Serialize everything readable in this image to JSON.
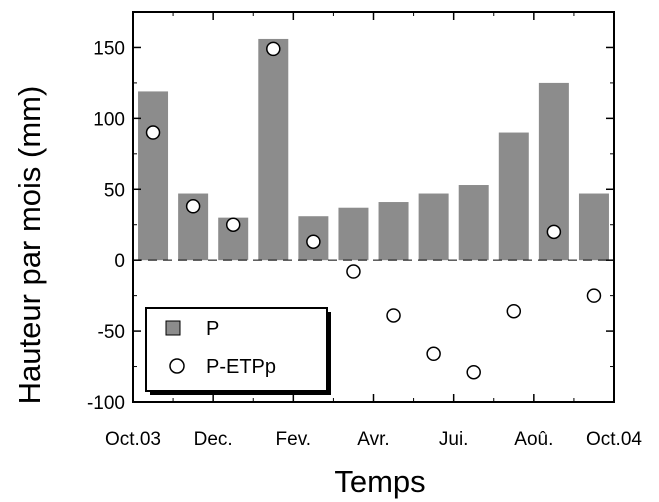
{
  "chart_data": {
    "type": "bar",
    "xlabel": "Temps",
    "ylabel": "Hauteur par mois (mm)",
    "ylim": [
      -100,
      175
    ],
    "yticks": [
      -100,
      -50,
      0,
      50,
      100,
      150
    ],
    "x_tick_labels": [
      "Oct.03",
      "Dec.",
      "Fev.",
      "Avr.",
      "Jui.",
      "Aoû.",
      "Oct.04"
    ],
    "zero_line": "dashed",
    "legend_position": "bottom-left",
    "series": [
      {
        "name": "P",
        "type": "bar",
        "color": "#8c8c8c",
        "values": [
          119,
          47,
          30,
          156,
          31,
          37,
          41,
          47,
          53,
          90,
          125,
          47
        ]
      },
      {
        "name": "P-ETPp",
        "type": "scatter",
        "marker": "open-circle",
        "values": [
          90,
          38,
          25,
          149,
          13,
          -8,
          -39,
          -66,
          -79,
          -36,
          20,
          -25
        ]
      }
    ]
  }
}
